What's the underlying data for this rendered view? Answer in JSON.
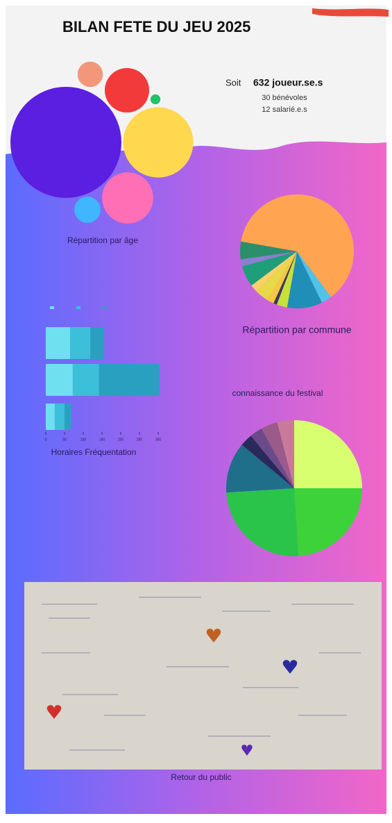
{
  "header": {
    "title": "BILAN FETE DU JEU 2025"
  },
  "stats": {
    "prefix": "Soit",
    "players": "632 joueur.se.s",
    "volunteers": "30 bénévoles",
    "staff": "12 salarié.e.s"
  },
  "chart_data": [
    {
      "type": "bubble",
      "title": "Répartition par âge",
      "values": [
        250,
        100,
        53,
        40,
        14,
        13,
        2
      ],
      "colors": [
        "#5a1fe0",
        "#ffd84f",
        "#ff6fb5",
        "#f23a3a",
        "#3fb6ff",
        "#f2977a",
        "#1fc46b"
      ]
    },
    {
      "type": "pie",
      "title": "Répartition par commune",
      "values": [
        62,
        3,
        10,
        3,
        1,
        2,
        4,
        2,
        6,
        2,
        5
      ],
      "colors": [
        "#ffa552",
        "#4fc3e8",
        "#1f8fb8",
        "#c8e03a",
        "#3a3a5a",
        "#f5c842",
        "#e8d84a",
        "#ffd06a",
        "#1f9e7a",
        "#8a7fd0",
        "#2a8f6a"
      ]
    },
    {
      "type": "hbar",
      "title": "Horaires Fréquentation",
      "categories": [
        null,
        null,
        null
      ],
      "xlim": [
        0,
        300
      ],
      "xticks": [
        0,
        50,
        100,
        150,
        200,
        250,
        300
      ],
      "series": [
        {
          "color": "#6fe0f0",
          "values": [
            65,
            72,
            24
          ]
        },
        {
          "color": "#3cbfd8",
          "values": [
            54,
            70,
            26
          ]
        },
        {
          "color": "#2aa0c0",
          "values": [
            37,
            161,
            18
          ]
        }
      ]
    },
    {
      "type": "pie",
      "title": "connaissance du festival",
      "values": [
        25,
        24,
        25,
        12,
        3,
        3,
        4,
        4
      ],
      "colors": [
        "#d8ff70",
        "#3ed23a",
        "#2ac44a",
        "#1f6f8a",
        "#2a2a5a",
        "#6a4a8a",
        "#9a5a8a",
        "#c87a9a"
      ]
    }
  ],
  "photo": {
    "caption": "Retour du public"
  }
}
